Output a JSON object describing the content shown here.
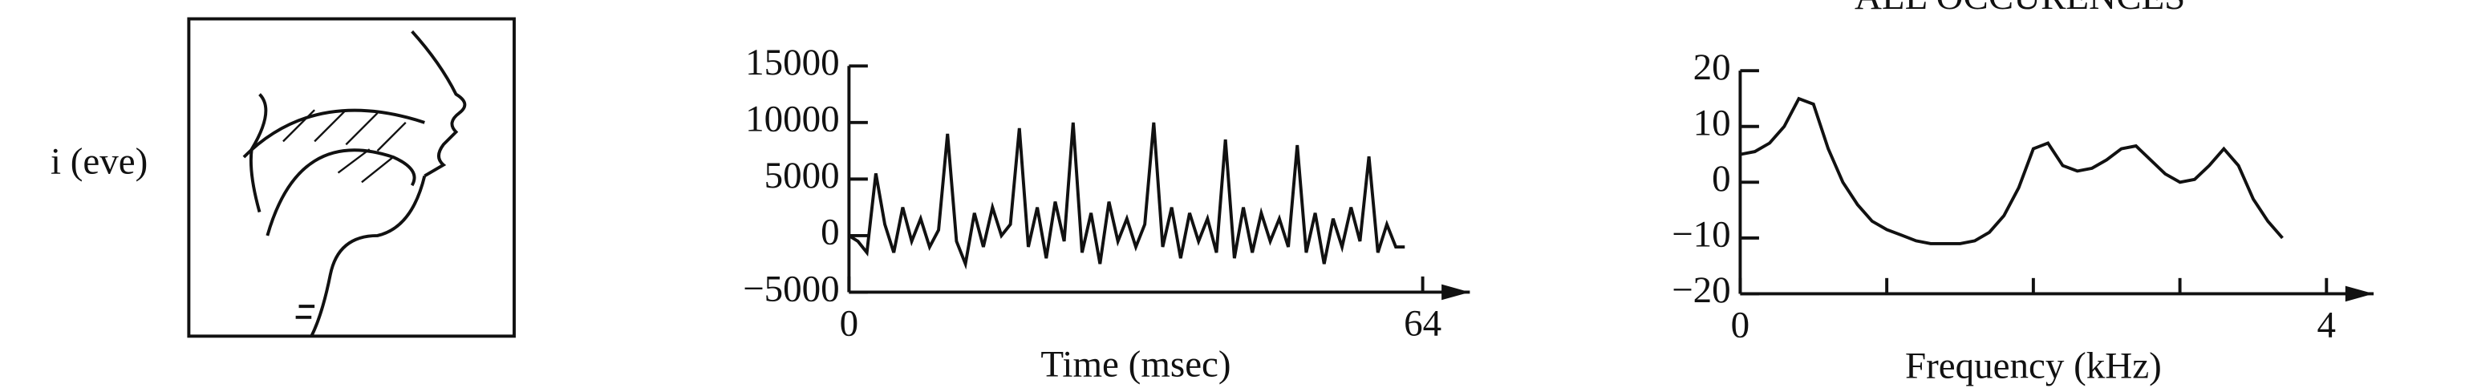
{
  "header": "ALL OCCURENCES",
  "panel_label": "i (eve)",
  "chart_data": [
    {
      "type": "line",
      "xlabel": "Time (msec)",
      "color": "#111111",
      "xlim": [
        0,
        64
      ],
      "xticks": [
        0,
        64
      ],
      "ylim": [
        -5000,
        15000
      ],
      "yticks": [
        15000,
        10000,
        5000,
        0,
        {
          "value": -5000,
          "label": "−5000"
        }
      ],
      "x": [
        0,
        1,
        2,
        3,
        4,
        5,
        6,
        7,
        8,
        9,
        10,
        11,
        12,
        13,
        14,
        15,
        16,
        17,
        18,
        19,
        20,
        21,
        22,
        23,
        24,
        25,
        26,
        27,
        28,
        29,
        30,
        31,
        32,
        33,
        34,
        35,
        36,
        37,
        38,
        39,
        40,
        41,
        42,
        43,
        44,
        45,
        46,
        47,
        48,
        49,
        50,
        51,
        52,
        53,
        54,
        55,
        56,
        57,
        58,
        59,
        60,
        61,
        62
      ],
      "values": [
        0,
        -500,
        -1500,
        5500,
        1000,
        -1500,
        2500,
        -500,
        1500,
        -1000,
        500,
        9000,
        -500,
        -2500,
        2000,
        -1000,
        2500,
        0,
        1000,
        9500,
        -1000,
        2500,
        -2000,
        3000,
        -500,
        10000,
        -1500,
        2000,
        -2500,
        3000,
        -500,
        1500,
        -1000,
        1000,
        10000,
        -1000,
        2500,
        -2000,
        2000,
        -500,
        1500,
        -1500,
        8500,
        -2000,
        2500,
        -1500,
        2000,
        -500,
        1500,
        -1000,
        8000,
        -1500,
        2000,
        -2500,
        1500,
        -1000,
        2500,
        -500,
        7000,
        -1500,
        1000,
        -1000,
        -1000
      ]
    },
    {
      "type": "line",
      "xlabel": "Frequency (kHz)",
      "color": "#111111",
      "xlim": [
        0,
        4
      ],
      "xticks": [
        0,
        4
      ],
      "minor_xticks": [
        1,
        2,
        3
      ],
      "ylim": [
        -20,
        20
      ],
      "yticks": [
        20,
        10,
        0,
        {
          "value": -10,
          "label": "−10"
        },
        {
          "value": -20,
          "label": "−20"
        }
      ],
      "x": [
        0,
        0.1,
        0.2,
        0.3,
        0.4,
        0.5,
        0.6,
        0.7,
        0.8,
        0.9,
        1.0,
        1.1,
        1.2,
        1.3,
        1.4,
        1.5,
        1.6,
        1.7,
        1.8,
        1.9,
        2.0,
        2.1,
        2.2,
        2.3,
        2.4,
        2.5,
        2.6,
        2.7,
        2.8,
        2.9,
        3.0,
        3.1,
        3.2,
        3.3,
        3.4,
        3.5,
        3.6,
        3.7
      ],
      "values": [
        5,
        5.5,
        7,
        10,
        15,
        14,
        6,
        0,
        -4,
        -7,
        -8.5,
        -9.5,
        -10.5,
        -11,
        -11,
        -11,
        -10.5,
        -9,
        -6,
        -1,
        6,
        7,
        3,
        2,
        2.5,
        4,
        6,
        6.5,
        4,
        1.5,
        0,
        0.5,
        3,
        6,
        3,
        -3,
        -7,
        -10
      ]
    }
  ]
}
